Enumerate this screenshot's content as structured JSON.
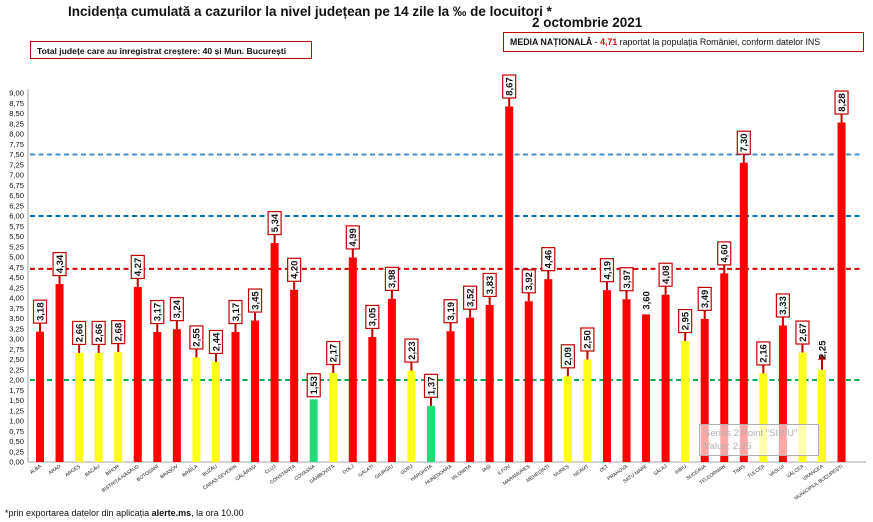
{
  "title": "Incidența cumulată a cazurilor la nivel județean pe 14 zile la ‰ de locuitori *",
  "date": "2 octombrie 2021",
  "growth_note": "Total județe care au înregistrat creștere:  40 și Mun. București",
  "media": {
    "label": "MEDIA NAȚIONALĂ",
    "prefix": " - ",
    "value": "4,71",
    "suffix": " raportat la populația României, conform datelor INS"
  },
  "footnote": {
    "prefix": "*prin exportarea datelor din aplicația ",
    "bold": "alerte.ms",
    "suffix": ", la ora 10.00"
  },
  "tooltip": {
    "line1": "Series 2 Point \"SIBIU\"",
    "line2": "Value: 2,95"
  },
  "colors": {
    "red": "#ff0000",
    "yellow": "#ffff1a",
    "green": "#22dd77",
    "dark_red": "#c00000",
    "line_red": "#d00000",
    "line_blue": "#0070c0",
    "line_lightblue": "#4a90d0",
    "line_green": "#00b050"
  },
  "chart_data": {
    "type": "bar",
    "title": "Incidența cumulată a cazurilor la nivel județean pe 14 zile la ‰ de locuitori *",
    "ylim": [
      0,
      9
    ],
    "ytick_step": 0.25,
    "categories": [
      "ALBA",
      "ARAD",
      "ARGEȘ",
      "BACĂU",
      "BIHOR",
      "BISTRIȚA-NĂSĂUD",
      "BOTOȘANI",
      "BRAȘOV",
      "BRĂILA",
      "BUZĂU",
      "CARAȘ-SEVERIN",
      "CĂLĂRAȘI",
      "CLUJ",
      "CONSTANȚA",
      "COVASNA",
      "DÂMBOVIȚA",
      "DOLJ",
      "GALAȚI",
      "GIURGIU",
      "GORJ",
      "HARGHITA",
      "HUNEDOARA",
      "IALOMIȚA",
      "IAȘI",
      "ILFOV",
      "MARAMUREȘ",
      "MEHEDINȚI",
      "MUREȘ",
      "NEAMȚ",
      "OLT",
      "PRAHOVA",
      "SATU MARE",
      "SĂLAJ",
      "SIBIU",
      "SUCEAVA",
      "TELEORMAN",
      "TIMIȘ",
      "TULCEA",
      "VASLUI",
      "VÂLCEA",
      "VRANCEA",
      "MUNICIPIUL BUCUREȘTI"
    ],
    "values": [
      3.18,
      4.34,
      2.66,
      2.66,
      2.68,
      4.27,
      3.17,
      3.24,
      2.55,
      2.44,
      3.17,
      3.45,
      5.34,
      4.2,
      1.53,
      2.17,
      4.99,
      3.05,
      3.98,
      2.23,
      1.37,
      3.19,
      3.52,
      3.83,
      8.67,
      3.92,
      4.46,
      2.09,
      2.5,
      4.19,
      3.97,
      3.6,
      4.08,
      2.95,
      3.49,
      4.6,
      7.3,
      2.16,
      3.33,
      2.67,
      2.25,
      8.28
    ],
    "labels": [
      "3,18",
      "4,34",
      "2,66",
      "2,66",
      "2,68",
      "4,27",
      "3,17",
      "3,24",
      "2,55",
      "2,44",
      "3,17",
      "3,45",
      "5,34",
      "4,20",
      "1,53",
      "2,17",
      "4,99",
      "3,05",
      "3,98",
      "2,23",
      "1,37",
      "3,19",
      "3,52",
      "3,83",
      "8,67",
      "3,92",
      "4,46",
      "2,09",
      "2,50",
      "4,19",
      "3,97",
      "3,60",
      "4,08",
      "2,95",
      "3,49",
      "4,60",
      "7,30",
      "2,16",
      "3,33",
      "2,67",
      "2,25",
      "8,28"
    ],
    "bar_colors": [
      "red",
      "red",
      "yellow",
      "yellow",
      "yellow",
      "red",
      "red",
      "red",
      "yellow",
      "yellow",
      "red",
      "red",
      "red",
      "red",
      "green",
      "yellow",
      "red",
      "red",
      "red",
      "yellow",
      "green",
      "red",
      "red",
      "red",
      "red",
      "red",
      "red",
      "yellow",
      "yellow",
      "red",
      "red",
      "red",
      "red",
      "yellow",
      "red",
      "red",
      "red",
      "yellow",
      "red",
      "yellow",
      "yellow",
      "red"
    ],
    "has_arrow": [
      true,
      true,
      true,
      true,
      true,
      true,
      true,
      true,
      true,
      true,
      true,
      true,
      true,
      true,
      false,
      true,
      true,
      true,
      true,
      true,
      true,
      true,
      true,
      true,
      true,
      true,
      true,
      true,
      true,
      true,
      true,
      false,
      true,
      true,
      true,
      true,
      true,
      true,
      true,
      true,
      true,
      true
    ],
    "boxed_label": [
      true,
      true,
      true,
      true,
      true,
      true,
      true,
      true,
      true,
      true,
      true,
      true,
      true,
      true,
      true,
      true,
      true,
      true,
      true,
      true,
      true,
      true,
      true,
      true,
      true,
      true,
      true,
      true,
      true,
      true,
      true,
      false,
      true,
      true,
      true,
      true,
      true,
      true,
      true,
      true,
      false,
      true
    ],
    "reference_lines": [
      {
        "value": 7.5,
        "color": "line_lightblue",
        "style": "dashed"
      },
      {
        "value": 6.0,
        "color": "line_blue",
        "style": "dashed"
      },
      {
        "value": 4.71,
        "color": "line_red",
        "style": "dashed"
      },
      {
        "value": 2.0,
        "color": "line_green",
        "style": "dashed"
      }
    ]
  }
}
